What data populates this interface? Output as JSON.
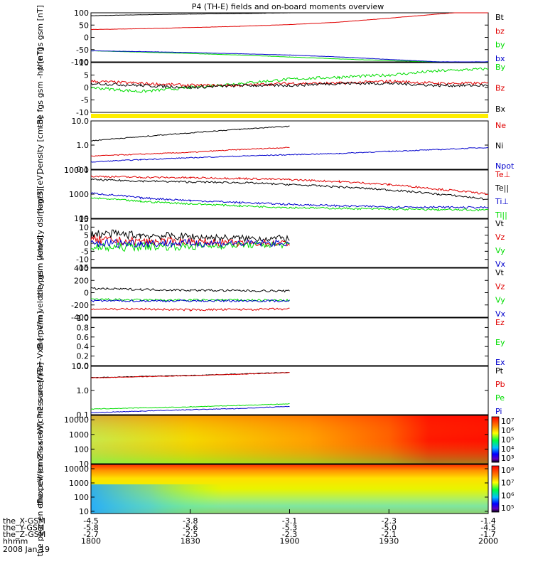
{
  "title": "P4 (TH-E) fields and on-board moments overview",
  "colors": {
    "black": "#000000",
    "red": "#e00000",
    "green": "#00dd00",
    "blue": "#0000cc",
    "yellow": "#ffee00"
  },
  "x_axis": {
    "ticks": [
      "1800",
      "1830",
      "1900",
      "1930",
      "2000"
    ],
    "rows": [
      {
        "label": "the_X-GSM",
        "values": [
          "-4.5",
          "-3.8",
          "-3.1",
          "-2.3",
          "-1.4"
        ]
      },
      {
        "label": "the_Y-GSM",
        "values": [
          "-5.8",
          "-5.6",
          "-5.3",
          "-5.0",
          "-4.5"
        ]
      },
      {
        "label": "the_Z-GSM",
        "values": [
          "-2.7",
          "-2.5",
          "-2.3",
          "-2.1",
          "-1.7"
        ]
      },
      {
        "label": "hhmm",
        "values": [
          "1800",
          "1830",
          "1900",
          "1930",
          "2000"
        ]
      }
    ],
    "date": "2008 Jan 19"
  },
  "chart_data": [
    {
      "type": "line",
      "ylabel": "the fgs gsm [nT]",
      "ylim": [
        -100,
        100
      ],
      "yticks": [
        "100",
        "50",
        "0",
        "-50",
        "-100"
      ],
      "x": [
        1800,
        1815,
        1830,
        1845,
        1900,
        1915,
        1930,
        1945,
        2000
      ],
      "series": [
        {
          "name": "Bt",
          "color": "black",
          "values": [
            88,
            92,
            95,
            97,
            100,
            104,
            108,
            110,
            112
          ]
        },
        {
          "name": "bz",
          "color": "red",
          "values": [
            32,
            35,
            40,
            45,
            52,
            62,
            78,
            95,
            112
          ]
        },
        {
          "name": "by",
          "color": "green",
          "values": [
            -55,
            -60,
            -66,
            -72,
            -80,
            -88,
            -95,
            -100,
            -105
          ]
        },
        {
          "name": "bx",
          "color": "blue",
          "values": [
            -55,
            -58,
            -62,
            -67,
            -72,
            -80,
            -90,
            -100,
            -100
          ]
        }
      ]
    },
    {
      "type": "line",
      "ylabel": "the fgs gsm -hp [nT]",
      "ylim": [
        -12,
        12
      ],
      "yticks": [
        "10",
        "5",
        "0",
        "-5",
        "-10"
      ],
      "x": [
        1800,
        1815,
        1830,
        1845,
        1900,
        1915,
        1930,
        1945,
        2000
      ],
      "series": [
        {
          "name": "By",
          "color": "green",
          "values": [
            0,
            -2,
            0,
            2,
            4,
            5,
            6,
            8,
            9
          ]
        },
        {
          "name": "Bz",
          "color": "red",
          "values": [
            3,
            2,
            1,
            1,
            2,
            2,
            3,
            2,
            2
          ]
        },
        {
          "name": "Bx",
          "color": "black",
          "values": [
            2,
            1,
            0,
            1,
            1,
            2,
            2,
            1,
            1
          ]
        }
      ]
    },
    {
      "type": "line",
      "ylabel": "Density [cm-3]",
      "scale": "log",
      "ylim": [
        0.1,
        10
      ],
      "yticks": [
        "10.0",
        "1.0",
        "0.1"
      ],
      "x": [
        1800,
        1815,
        1830,
        1845,
        1900,
        1915,
        1930,
        1945,
        2000
      ],
      "series": [
        {
          "name": "Ne",
          "color": "red",
          "values": [
            0.35,
            0.42,
            0.5,
            0.65,
            0.8,
            null,
            null,
            null,
            null
          ]
        },
        {
          "name": "Ni",
          "color": "black",
          "values": [
            1.5,
            2.2,
            3.2,
            4.5,
            6,
            null,
            null,
            null,
            null
          ]
        },
        {
          "name": "Npot",
          "color": "blue",
          "values": [
            0.2,
            0.25,
            0.3,
            0.35,
            0.4,
            0.45,
            0.55,
            0.65,
            0.8
          ]
        }
      ]
    },
    {
      "type": "line",
      "ylabel": "magt3 [eV]",
      "scale": "log",
      "ylim": [
        100,
        10000
      ],
      "yticks": [
        "10000",
        "1000",
        "100"
      ],
      "x": [
        1800,
        1815,
        1830,
        1845,
        1900,
        1915,
        1930,
        1945,
        2000
      ],
      "series": [
        {
          "name": "Te⊥",
          "color": "red",
          "values": [
            5500,
            5000,
            4800,
            4500,
            4000,
            3300,
            2500,
            1600,
            1000
          ]
        },
        {
          "name": "Te||",
          "color": "black",
          "values": [
            4000,
            3500,
            3200,
            3000,
            2500,
            2000,
            1500,
            1000,
            600
          ]
        },
        {
          "name": "Ti⊥",
          "color": "blue",
          "values": [
            1100,
            700,
            550,
            450,
            380,
            330,
            300,
            290,
            280
          ]
        },
        {
          "name": "Ti||",
          "color": "green",
          "values": [
            700,
            500,
            400,
            330,
            280,
            260,
            240,
            230,
            220
          ]
        }
      ]
    },
    {
      "type": "line",
      "ylabel": "the peim velocity dsl [km/s]",
      "ylim": [
        -15,
        15
      ],
      "yticks": [
        "15",
        "10",
        "5",
        "0",
        "-5",
        "-10",
        "-15"
      ],
      "x": [
        1800,
        1815,
        1830,
        1845,
        1900
      ],
      "series": [
        {
          "name": "Vt",
          "color": "black",
          "values": [
            6,
            5,
            4,
            3,
            3
          ]
        },
        {
          "name": "Vz",
          "color": "red",
          "values": [
            2,
            1,
            1,
            0,
            0
          ]
        },
        {
          "name": "Vy",
          "color": "green",
          "values": [
            -3,
            -2,
            -2,
            -1,
            -1
          ]
        },
        {
          "name": "Vx",
          "color": "blue",
          "values": [
            0,
            0,
            0,
            0,
            0
          ]
        }
      ]
    },
    {
      "type": "line",
      "ylabel": "the peim velocity gsm [km/s]",
      "ylim": [
        -200,
        400
      ],
      "yticks": [
        "400",
        "200",
        "0",
        "-200",
        "-400"
      ],
      "x": [
        1800,
        1815,
        1830,
        1845,
        1900
      ],
      "series": [
        {
          "name": "Vt",
          "color": "black",
          "values": [
            150,
            140,
            130,
            125,
            120
          ]
        },
        {
          "name": "Vz",
          "color": "red",
          "values": [
            -100,
            -100,
            -110,
            -105,
            -100
          ]
        },
        {
          "name": "Vy",
          "color": "green",
          "values": [
            20,
            10,
            10,
            10,
            5
          ]
        },
        {
          "name": "Vx",
          "color": "blue",
          "values": [
            0,
            0,
            0,
            0,
            0
          ]
        }
      ]
    },
    {
      "type": "line",
      "ylabel": "E=-VxB [mV/m]",
      "ylim": [
        0,
        1
      ],
      "yticks": [
        "1.0",
        "0.8",
        "0.6",
        "0.4",
        "0.2",
        "0.0"
      ],
      "x": [],
      "series": [
        {
          "name": "Ez",
          "color": "red",
          "values": []
        },
        {
          "name": "Ey",
          "color": "green",
          "values": []
        },
        {
          "name": "Ex",
          "color": "blue",
          "values": []
        }
      ]
    },
    {
      "type": "line",
      "ylabel": "Pressure [nPa]",
      "scale": "log",
      "ylim": [
        0.1,
        10
      ],
      "yticks": [
        "10.0",
        "1.0",
        "0.1"
      ],
      "x": [
        1800,
        1815,
        1830,
        1845,
        1900
      ],
      "series": [
        {
          "name": "Pt",
          "color": "black",
          "values": [
            3.4,
            3.8,
            4.2,
            4.8,
            5.6
          ]
        },
        {
          "name": "Pb",
          "color": "red",
          "values": [
            3.3,
            3.7,
            4.1,
            4.7,
            5.5
          ]
        },
        {
          "name": "Pe",
          "color": "green",
          "values": [
            0.17,
            0.19,
            0.21,
            0.24,
            0.28
          ]
        },
        {
          "name": "Pi",
          "color": "blue",
          "values": [
            0.12,
            0.14,
            0.16,
            0.18,
            0.22
          ]
        }
      ]
    },
    {
      "type": "heatmap",
      "ylabel": "the peir en eflux eV/(cm2-s-sr-eV)",
      "scale": "log",
      "ylim": [
        10,
        20000
      ],
      "yticks": [
        "10000",
        "1000",
        "100",
        "10"
      ],
      "colorbar_ticks": [
        "10⁷",
        "10⁶",
        "10⁵",
        "10⁴",
        "10³"
      ]
    },
    {
      "type": "heatmap",
      "ylabel": "the peer en eflux eV/(cm2-s-sr-eV)",
      "scale": "log",
      "ylim": [
        7,
        20000
      ],
      "yticks": [
        "10000",
        "1000",
        "100",
        "10"
      ],
      "colorbar_ticks": [
        "10⁸",
        "10⁷",
        "10⁶",
        "10⁵"
      ]
    }
  ]
}
